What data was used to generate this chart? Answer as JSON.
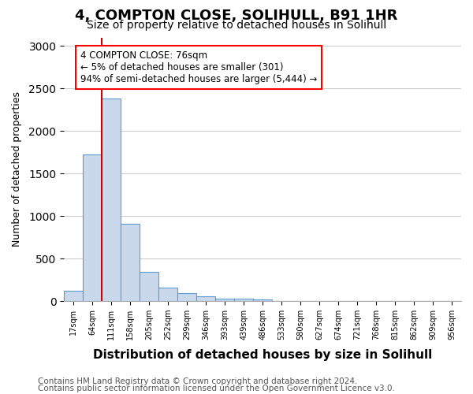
{
  "title": "4, COMPTON CLOSE, SOLIHULL, B91 1HR",
  "subtitle": "Size of property relative to detached houses in Solihull",
  "xlabel": "Distribution of detached houses by size in Solihull",
  "ylabel": "Number of detached properties",
  "bar_values": [
    120,
    1720,
    2380,
    910,
    345,
    155,
    90,
    55,
    30,
    25,
    20,
    0,
    0,
    0,
    0,
    0,
    0,
    0,
    0,
    0,
    0
  ],
  "bar_labels": [
    "17sqm",
    "64sqm",
    "111sqm",
    "158sqm",
    "205sqm",
    "252sqm",
    "299sqm",
    "346sqm",
    "393sqm",
    "439sqm",
    "486sqm",
    "533sqm",
    "580sqm",
    "627sqm",
    "674sqm",
    "721sqm",
    "768sqm",
    "815sqm",
    "862sqm",
    "909sqm",
    "956sqm"
  ],
  "bar_color": "#c9d9eb",
  "bar_edge_color": "#5b9bd5",
  "vline_color": "#cc0000",
  "annotation_box_text": "4 COMPTON CLOSE: 76sqm\n← 5% of detached houses are smaller (301)\n94% of semi-detached houses are larger (5,444) →",
  "ylim": [
    0,
    3100
  ],
  "yticks": [
    0,
    500,
    1000,
    1500,
    2000,
    2500,
    3000
  ],
  "footer_line1": "Contains HM Land Registry data © Crown copyright and database right 2024.",
  "footer_line2": "Contains public sector information licensed under the Open Government Licence v3.0.",
  "background_color": "#ffffff",
  "grid_color": "#cccccc",
  "title_fontsize": 13,
  "subtitle_fontsize": 10,
  "xlabel_fontsize": 11,
  "ylabel_fontsize": 9,
  "footer_fontsize": 7.5
}
